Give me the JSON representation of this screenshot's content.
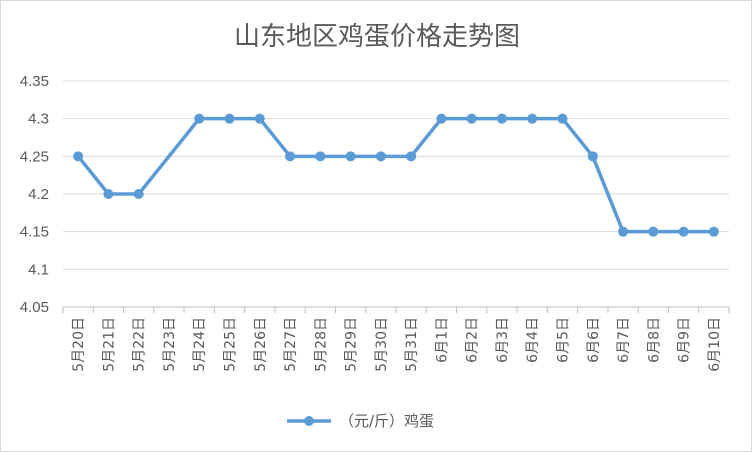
{
  "chart_data": {
    "type": "line",
    "title": "山东地区鸡蛋价格走势图",
    "xlabel": "",
    "ylabel": "",
    "categories": [
      "5月20日",
      "5月21日",
      "5月22日",
      "5月23日",
      "5月24日",
      "5月25日",
      "5月26日",
      "5月27日",
      "5月28日",
      "5月29日",
      "5月30日",
      "5月31日",
      "6月1日",
      "6月2日",
      "6月3日",
      "6月4日",
      "6月5日",
      "6月6日",
      "6月7日",
      "6月8日",
      "6月9日",
      "6月10日"
    ],
    "series": [
      {
        "name": "（元/斤）鸡蛋",
        "color": "#5b9bd5",
        "values": [
          4.25,
          4.2,
          4.2,
          null,
          4.3,
          4.3,
          4.3,
          4.25,
          4.25,
          4.25,
          4.25,
          4.25,
          4.3,
          4.3,
          4.3,
          4.3,
          4.3,
          4.25,
          4.15,
          4.15,
          4.15,
          4.15
        ]
      }
    ],
    "ylim": [
      4.05,
      4.35
    ],
    "yticks": [
      "4.05",
      "4.1",
      "4.15",
      "4.2",
      "4.25",
      "4.3",
      "4.35"
    ],
    "grid": true,
    "legend": "bottom"
  }
}
